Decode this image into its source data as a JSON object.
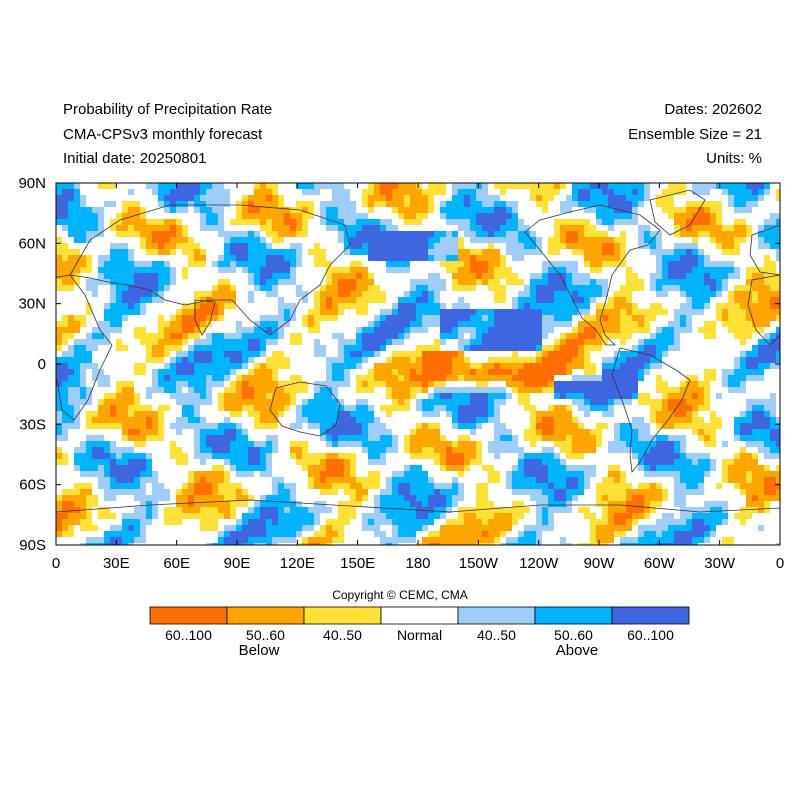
{
  "header": {
    "title": "Probability of Precipitation Rate",
    "model": "CMA-CPSv3 monthly forecast",
    "initial_date": "Initial date: 20250801",
    "dates": "Dates: 202602",
    "ensemble": "Ensemble Size = 21",
    "units": "Units: %"
  },
  "map": {
    "lat_labels": [
      "90N",
      "60N",
      "30N",
      "0",
      "30S",
      "60S",
      "90S"
    ],
    "lon_labels": [
      "0",
      "30E",
      "60E",
      "90E",
      "120E",
      "150E",
      "180",
      "150W",
      "120W",
      "90W",
      "60W",
      "30W",
      "0"
    ]
  },
  "legend": {
    "copyright": "Copyright © CEMC, CMA",
    "categories": [
      {
        "label": "60..100",
        "color": "#ff6f00"
      },
      {
        "label": "50..60",
        "color": "#ffa500"
      },
      {
        "label": "40..50",
        "color": "#ffe135"
      },
      {
        "label": "Normal",
        "color": "#ffffff"
      },
      {
        "label": "40..50",
        "color": "#9fcdfa"
      },
      {
        "label": "50..60",
        "color": "#00b4ff"
      },
      {
        "label": "60..100",
        "color": "#3e66e0"
      }
    ],
    "below_label": "Below",
    "above_label": "Above"
  }
}
